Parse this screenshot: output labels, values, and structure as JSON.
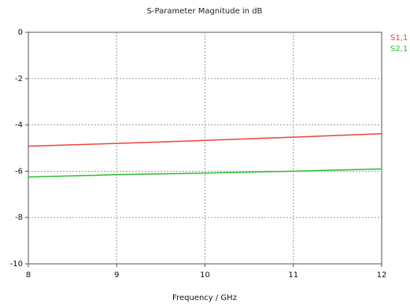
{
  "chart_data": {
    "type": "line",
    "title": "S-Parameter Magnitude in dB",
    "xlabel": "Frequency / GHz",
    "ylabel": "",
    "xlim": [
      8,
      12
    ],
    "ylim": [
      -10,
      0
    ],
    "xticks": [
      8,
      9,
      10,
      11,
      12
    ],
    "yticks": [
      0,
      -2,
      -4,
      -6,
      -8,
      -10
    ],
    "x_tick_labels": [
      "8",
      "9",
      "10",
      "11",
      "12"
    ],
    "y_tick_labels": [
      "0",
      "-2",
      "-4",
      "-6",
      "-8",
      "-10"
    ],
    "grid": true,
    "legend_position": "top-right",
    "series": [
      {
        "name": "S1,1",
        "color": "#e8453c",
        "x": [
          8,
          9,
          10,
          11,
          12
        ],
        "values": [
          -4.92,
          -4.8,
          -4.67,
          -4.53,
          -4.38
        ]
      },
      {
        "name": "S2,1",
        "color": "#2dbb2d",
        "x": [
          8,
          9,
          10,
          11,
          12
        ],
        "values": [
          -6.25,
          -6.15,
          -6.08,
          -6.0,
          -5.9
        ]
      }
    ]
  }
}
